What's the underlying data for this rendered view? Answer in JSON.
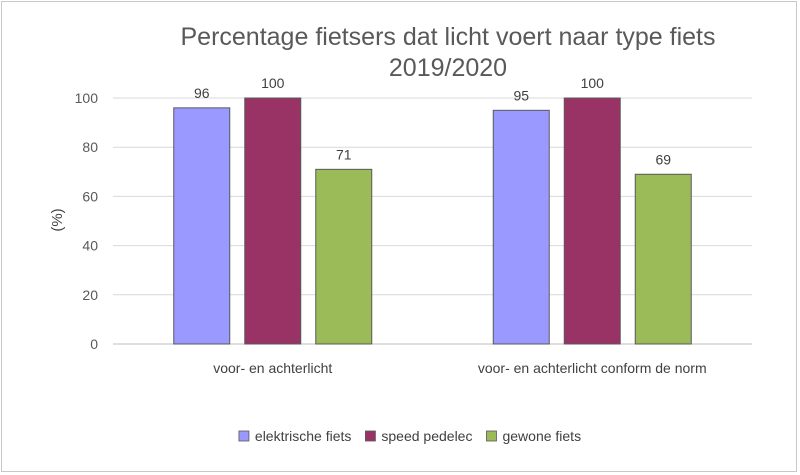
{
  "chart_data": {
    "type": "bar",
    "title_lines": [
      "Percentage fietsers dat licht voert naar type fiets",
      "2019/2020"
    ],
    "ylabel": "(%)",
    "xlabel": "",
    "ylim": [
      0,
      100
    ],
    "yticks": [
      0,
      20,
      40,
      60,
      80,
      100
    ],
    "grid": true,
    "categories": [
      "voor- en achterlicht",
      "voor- en achterlicht conform de norm"
    ],
    "series": [
      {
        "name": "elektrische fiets",
        "values": [
          96,
          95
        ],
        "color": "#9999ff"
      },
      {
        "name": "speed pedelec",
        "values": [
          100,
          100
        ],
        "color": "#993366"
      },
      {
        "name": "gewone fiets",
        "values": [
          71,
          69
        ],
        "color": "#9bbb59"
      }
    ],
    "legend_position": "bottom"
  }
}
